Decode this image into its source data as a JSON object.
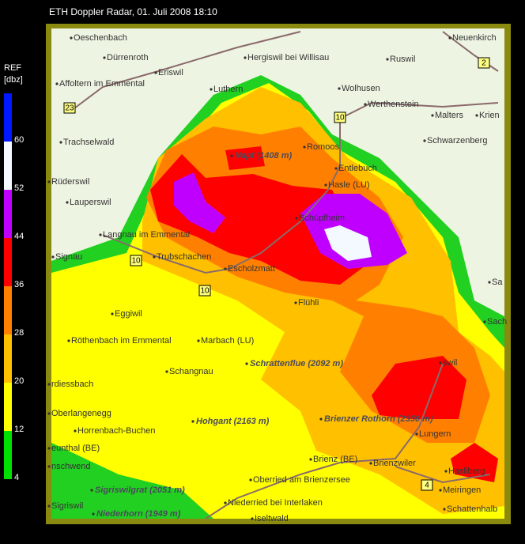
{
  "header": {
    "title": "ETH Doppler Radar, 01. Juli 2008 18:10"
  },
  "legend": {
    "title": "REF",
    "unit": "[dbz]",
    "ticks": [
      60,
      52,
      44,
      36,
      28,
      20,
      12,
      4
    ],
    "colors": [
      "#0018ff",
      "#f4f8ff",
      "#c000ff",
      "#ff0000",
      "#ff8000",
      "#ffc000",
      "#ffff00",
      "#00e000"
    ]
  },
  "places": [
    "Oeschenbach",
    "Dürrenroth",
    "Eriswil",
    "Hergiswil bei Willisau",
    "Ruswil",
    "Neuenkirch",
    "Affoltern im Emmental",
    "Luthern",
    "Wolhusen",
    "Werthenstein",
    "Malters",
    "Krien",
    "Trachselwald",
    "Romoos",
    "Schwarzenberg",
    "Entlebuch",
    "Hasle (LU)",
    "Rüderswil",
    "Lauperswil",
    "Schüpfheim",
    "Langnau im Emmental",
    "Trubschachen",
    "Escholzmatt",
    "Signau",
    "Flühli",
    "Eggiwil",
    "Röthenbach im Emmental",
    "Marbach (LU)",
    "Schangnau",
    "rdiessbach",
    "swil",
    "Oberlangenegg",
    "Horrenbach-Buchen",
    "Lungern",
    "eunthal (BE)",
    "nschwend",
    "Brienz (BE)",
    "Brienzwiler",
    "Hasliberg",
    "Oberried am Brienzersee",
    "Meiringen",
    "Niederried bei Interlaken",
    "Schattenhalb",
    "Sigriswil",
    "Iseltwald",
    "Sach",
    "Sa"
  ],
  "peaks": [
    "Napf (1408 m)",
    "Schrattenflue (2092 m)",
    "Brienzer Rothorn (2350 m)",
    "Hohgant (2163 m)",
    "Sigriswilgrat (2051 m)",
    "Niederhorn (1949 m)"
  ],
  "roads": [
    "23",
    "10",
    "10",
    "10",
    "2",
    "4"
  ]
}
